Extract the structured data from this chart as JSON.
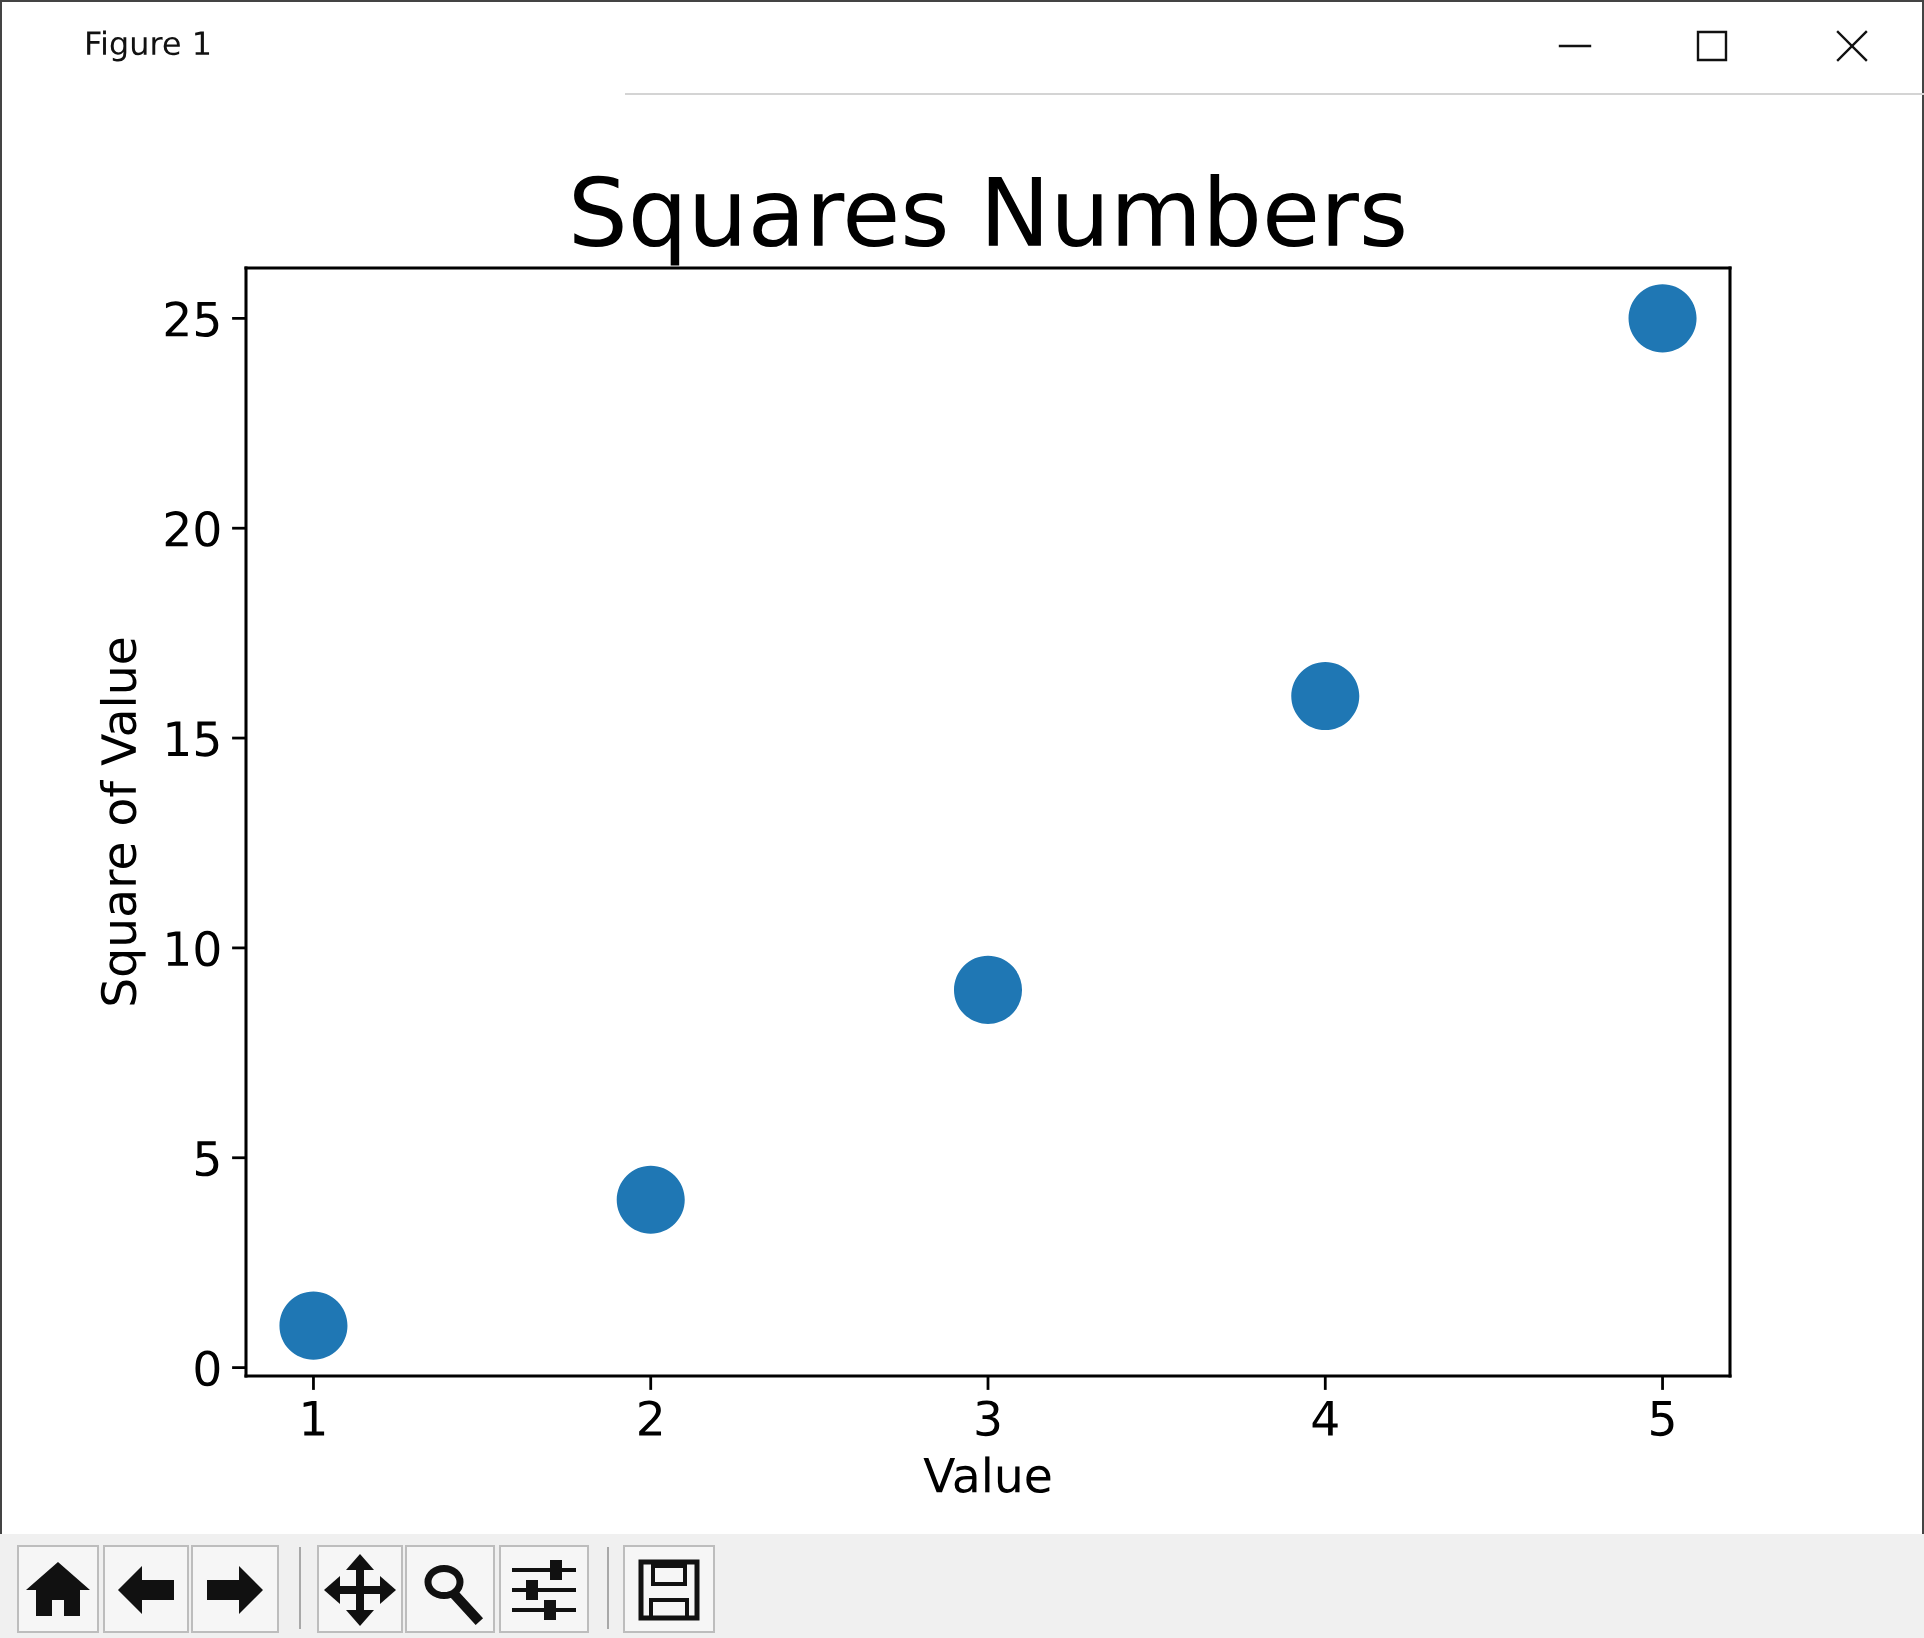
{
  "chart_data": {
    "type": "scatter",
    "title": "Squares Numbers",
    "xlabel": "Value",
    "ylabel": "Square of Value",
    "x": [
      1,
      2,
      3,
      4,
      5
    ],
    "values": [
      1,
      4,
      9,
      16,
      25
    ],
    "color": "#1f77b4",
    "marker": "circle",
    "xlim": [
      0.8,
      5.2
    ],
    "ylim": [
      -0.2,
      26.2
    ],
    "xticks": [
      1,
      2,
      3,
      4,
      5
    ],
    "yticks": [
      0,
      5,
      10,
      15,
      20,
      25
    ],
    "annotations": [
      "Figure 1"
    ]
  }
}
